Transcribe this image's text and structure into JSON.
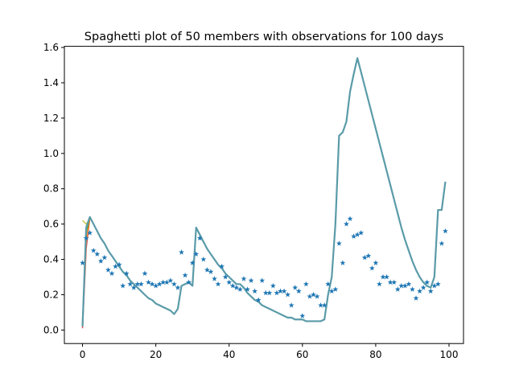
{
  "chart_data": {
    "type": "line",
    "title": "Spaghetti plot of 50 members with observations for 100 days",
    "xlabel": "",
    "ylabel": "",
    "xlim": [
      -4.95,
      103.95
    ],
    "ylim": [
      -0.0765,
      1.6065
    ],
    "xticks": [
      0,
      20,
      40,
      60,
      80,
      100
    ],
    "yticks": [
      0.0,
      0.2,
      0.4,
      0.6,
      0.8,
      1.0,
      1.2,
      1.4,
      1.6
    ],
    "ytick_labels": [
      "0.0",
      "0.2",
      "0.4",
      "0.6",
      "0.8",
      "1.0",
      "1.2",
      "1.4",
      "1.6"
    ],
    "grid": false,
    "legend": "none",
    "colors": {
      "members": "#5a9ba8",
      "observations": "#1f77b4",
      "early_members": [
        "#d62728",
        "#bcbd22",
        "#ff7f0e",
        "#2ca02c"
      ]
    },
    "series": [
      {
        "style": "line",
        "x": [
          0,
          1,
          2,
          3,
          4,
          5,
          6,
          7,
          8,
          9,
          10,
          11,
          12,
          13,
          14,
          15,
          16,
          17,
          18,
          19,
          20,
          21,
          22,
          23,
          24,
          25,
          26,
          27,
          28,
          29,
          30,
          31,
          32,
          33,
          34,
          35,
          36,
          37,
          38,
          39,
          40,
          41,
          42,
          43,
          44,
          45,
          46,
          47,
          48,
          49,
          50,
          51,
          52,
          53,
          54,
          55,
          56,
          57,
          58,
          59,
          60,
          61,
          62,
          63,
          64,
          65,
          66,
          67,
          68,
          69,
          70,
          71,
          72,
          73,
          74,
          75,
          76,
          77,
          78,
          79,
          80,
          81,
          82,
          83,
          84,
          85,
          86,
          87,
          88,
          89,
          90,
          91,
          92,
          93,
          94,
          95,
          96,
          97,
          98,
          99
        ],
        "values": [
          0.02,
          0.58,
          0.64,
          0.6,
          0.56,
          0.52,
          0.49,
          0.45,
          0.42,
          0.39,
          0.36,
          0.33,
          0.31,
          0.28,
          0.26,
          0.24,
          0.22,
          0.2,
          0.18,
          0.17,
          0.15,
          0.14,
          0.13,
          0.12,
          0.11,
          0.09,
          0.12,
          0.25,
          0.26,
          0.27,
          0.25,
          0.58,
          0.54,
          0.5,
          0.46,
          0.43,
          0.4,
          0.37,
          0.35,
          0.32,
          0.3,
          0.28,
          0.26,
          0.26,
          0.24,
          0.21,
          0.19,
          0.17,
          0.16,
          0.14,
          0.13,
          0.12,
          0.11,
          0.1,
          0.09,
          0.08,
          0.07,
          0.07,
          0.06,
          0.06,
          0.06,
          0.05,
          0.05,
          0.05,
          0.05,
          0.05,
          0.06,
          0.2,
          0.3,
          0.6,
          1.1,
          1.12,
          1.18,
          1.35,
          1.45,
          1.54,
          1.46,
          1.38,
          1.3,
          1.22,
          1.14,
          1.06,
          0.98,
          0.9,
          0.82,
          0.74,
          0.66,
          0.58,
          0.51,
          0.45,
          0.39,
          0.34,
          0.3,
          0.27,
          0.25,
          0.24,
          0.3,
          0.68,
          0.68,
          0.84
        ]
      },
      {
        "style": "markers",
        "marker": "*",
        "x": [
          0,
          1,
          2,
          3,
          4,
          5,
          6,
          7,
          8,
          9,
          10,
          11,
          12,
          13,
          14,
          15,
          16,
          17,
          18,
          19,
          20,
          21,
          22,
          23,
          24,
          25,
          26,
          27,
          28,
          29,
          30,
          31,
          32,
          33,
          34,
          35,
          36,
          37,
          38,
          39,
          40,
          41,
          42,
          43,
          44,
          45,
          46,
          47,
          48,
          49,
          50,
          51,
          52,
          53,
          54,
          55,
          56,
          57,
          58,
          59,
          60,
          61,
          62,
          63,
          64,
          65,
          66,
          67,
          68,
          69,
          70,
          71,
          72,
          73,
          74,
          75,
          76,
          77,
          78,
          79,
          80,
          81,
          82,
          83,
          84,
          85,
          86,
          87,
          88,
          89,
          90,
          91,
          92,
          93,
          94,
          95,
          96,
          97,
          98,
          99
        ],
        "values": [
          0.38,
          0.52,
          0.55,
          0.45,
          0.43,
          0.39,
          0.41,
          0.34,
          0.32,
          0.36,
          0.37,
          0.25,
          0.32,
          0.26,
          0.24,
          0.26,
          0.26,
          0.32,
          0.27,
          0.26,
          0.25,
          0.26,
          0.27,
          0.27,
          0.28,
          0.26,
          0.24,
          0.44,
          0.31,
          0.27,
          0.38,
          0.43,
          0.52,
          0.4,
          0.34,
          0.33,
          0.29,
          0.26,
          0.36,
          0.3,
          0.27,
          0.25,
          0.24,
          0.23,
          0.29,
          0.23,
          0.28,
          0.22,
          0.17,
          0.28,
          0.21,
          0.21,
          0.25,
          0.21,
          0.22,
          0.22,
          0.2,
          0.14,
          0.24,
          0.22,
          0.08,
          0.26,
          0.19,
          0.2,
          0.19,
          0.14,
          0.14,
          0.26,
          0.22,
          0.23,
          0.49,
          0.38,
          0.6,
          0.63,
          0.53,
          0.54,
          0.55,
          0.41,
          0.42,
          0.35,
          0.38,
          0.26,
          0.3,
          0.3,
          0.27,
          0.27,
          0.23,
          0.25,
          0.25,
          0.26,
          0.23,
          0.18,
          0.22,
          0.24,
          0.27,
          0.22,
          0.25,
          0.26,
          0.49,
          0.56
        ]
      }
    ],
    "early_member_starts": [
      {
        "x": [
          0,
          1,
          2
        ],
        "values": [
          0.01,
          0.46,
          0.64
        ]
      },
      {
        "x": [
          0,
          1,
          2
        ],
        "values": [
          0.62,
          0.6,
          0.63
        ]
      },
      {
        "x": [
          0,
          1,
          2
        ],
        "values": [
          0.05,
          0.5,
          0.63
        ]
      },
      {
        "x": [
          0,
          1,
          2
        ],
        "values": [
          0.03,
          0.55,
          0.64
        ]
      }
    ]
  }
}
